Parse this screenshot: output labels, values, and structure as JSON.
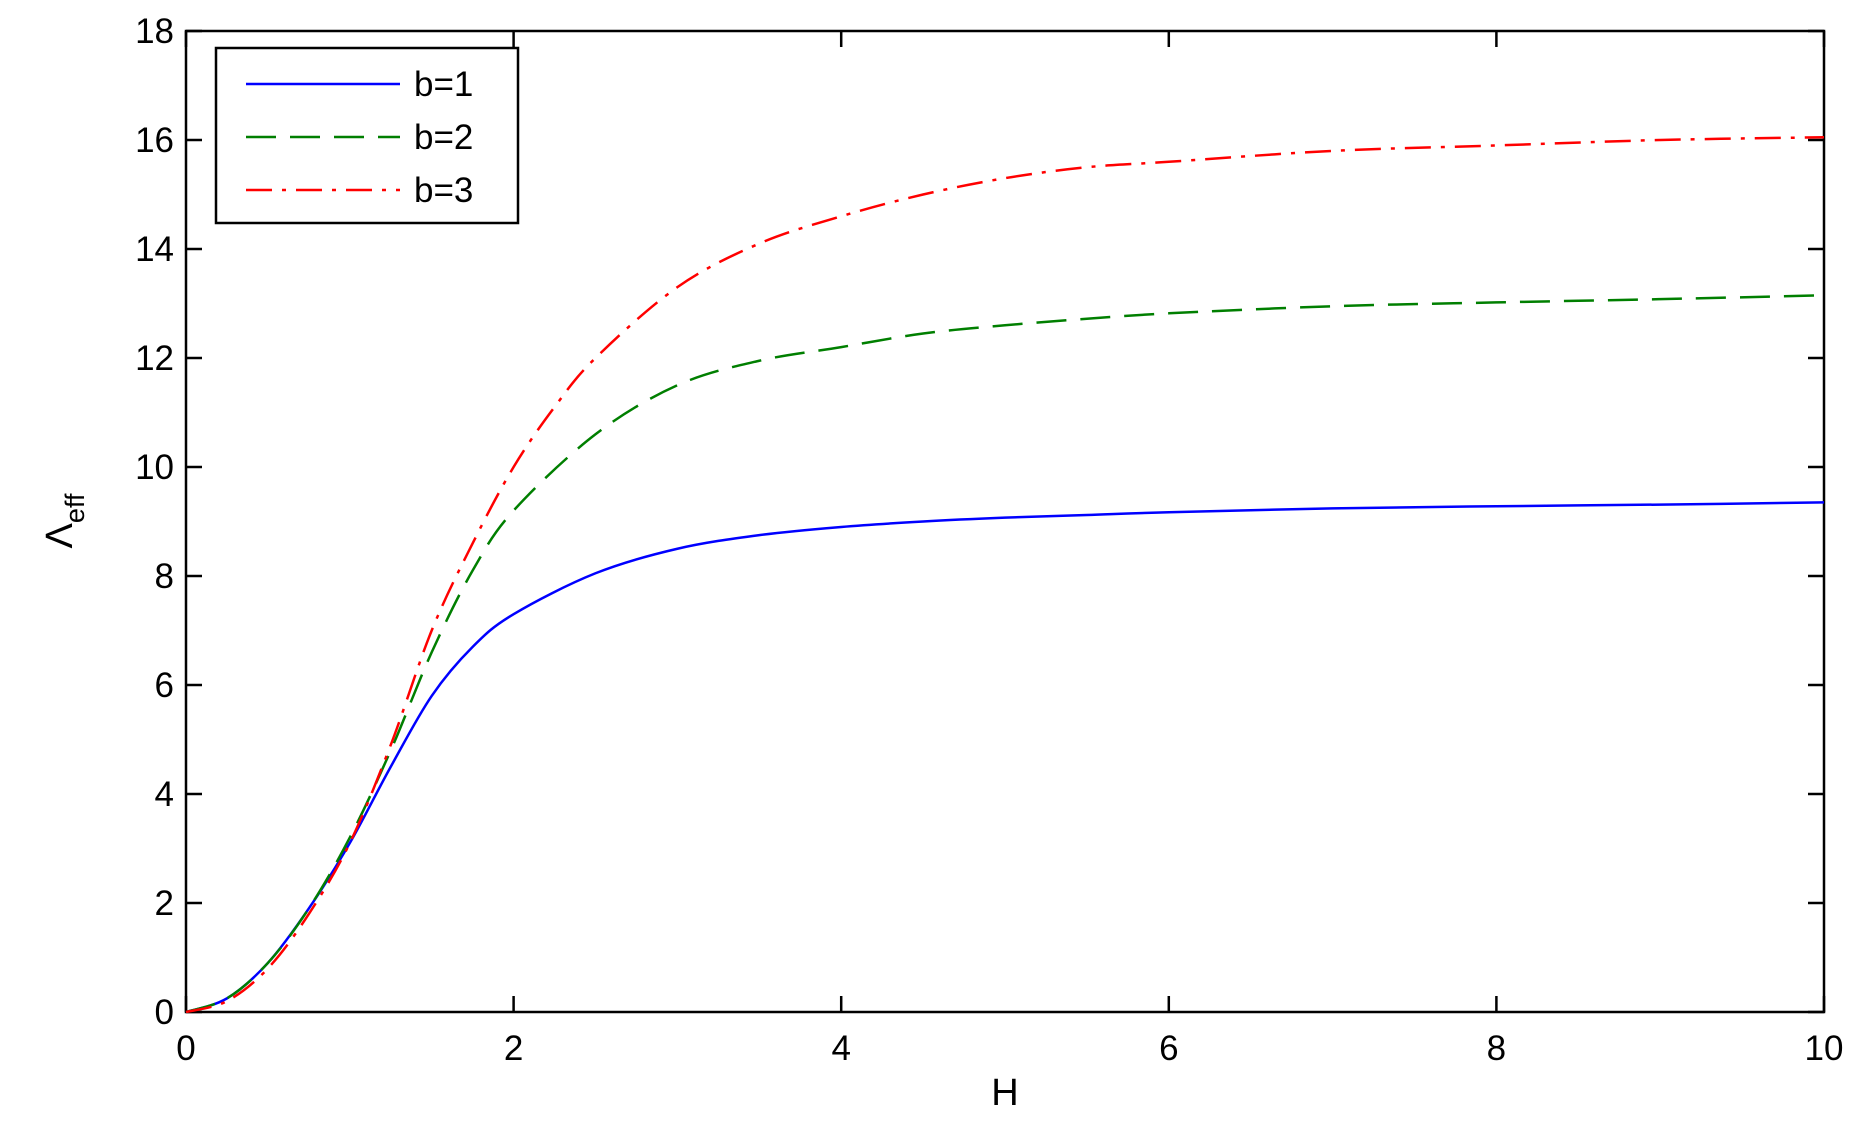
{
  "chart_data": {
    "type": "line",
    "title": "",
    "xlabel": "H",
    "ylabel": "Λ",
    "ylabel_subscript": "eff",
    "xlim": [
      0,
      10
    ],
    "ylim": [
      0,
      18
    ],
    "xticks": [
      0,
      2,
      4,
      6,
      8,
      10
    ],
    "yticks": [
      0,
      2,
      4,
      6,
      8,
      10,
      12,
      14,
      16,
      18
    ],
    "grid": false,
    "legend_position": "top-left",
    "series": [
      {
        "name": "b=1",
        "color": "#0000ff",
        "line_style": "solid",
        "x": [
          0,
          0.25,
          0.5,
          0.75,
          1.0,
          1.25,
          1.5,
          1.75,
          2.0,
          2.5,
          3.0,
          3.5,
          4.0,
          4.5,
          5.0,
          5.5,
          6.0,
          7.0,
          8.0,
          9.0,
          10.0
        ],
        "y": [
          0,
          0.25,
          0.9,
          1.9,
          3.1,
          4.5,
          5.8,
          6.7,
          7.3,
          8.05,
          8.5,
          8.75,
          8.9,
          9.0,
          9.07,
          9.12,
          9.17,
          9.24,
          9.28,
          9.31,
          9.35
        ]
      },
      {
        "name": "b=2",
        "color": "#007f00",
        "line_style": "dashed",
        "x": [
          0,
          0.25,
          0.5,
          0.75,
          1.0,
          1.25,
          1.5,
          1.75,
          2.0,
          2.5,
          3.0,
          3.5,
          4.0,
          4.5,
          5.0,
          5.5,
          6.0,
          7.0,
          8.0,
          9.0,
          10.0
        ],
        "y": [
          0,
          0.25,
          0.9,
          1.9,
          3.2,
          4.8,
          6.6,
          8.1,
          9.2,
          10.6,
          11.5,
          11.95,
          12.2,
          12.45,
          12.6,
          12.72,
          12.82,
          12.95,
          13.02,
          13.08,
          13.15
        ]
      },
      {
        "name": "b=3",
        "color": "#ff0000",
        "line_style": "dash-dot",
        "x": [
          0,
          0.25,
          0.5,
          0.75,
          1.0,
          1.25,
          1.5,
          1.75,
          2.0,
          2.25,
          2.5,
          3.0,
          3.5,
          4.0,
          4.5,
          5.0,
          5.5,
          6.0,
          7.0,
          8.0,
          9.0,
          10.0
        ],
        "y": [
          0,
          0.2,
          0.8,
          1.8,
          3.1,
          4.9,
          7.0,
          8.6,
          10.0,
          11.1,
          12.0,
          13.3,
          14.1,
          14.6,
          15.0,
          15.3,
          15.5,
          15.6,
          15.8,
          15.9,
          16.0,
          16.05
        ]
      }
    ]
  }
}
